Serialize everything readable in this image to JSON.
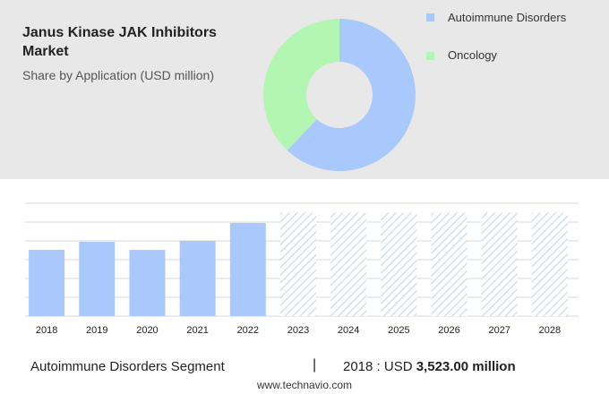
{
  "header": {
    "title": "Janus Kinase JAK Inhibitors Market",
    "subtitle": "Share by Application (USD million)"
  },
  "colors": {
    "autoimmune": "#a9c8fb",
    "oncology": "#b3f5b3",
    "forecast_hatch": "#c8d9f5",
    "grid": "#d9d9d9"
  },
  "chart_data": [
    {
      "type": "pie",
      "variant": "donut",
      "series": [
        {
          "name": "Autoimmune Disorders",
          "share": 0.62
        },
        {
          "name": "Oncology",
          "share": 0.38
        }
      ],
      "legend_position": "right"
    },
    {
      "type": "bar",
      "categories": [
        "2018",
        "2019",
        "2020",
        "2021",
        "2022",
        "2023",
        "2024",
        "2025",
        "2026",
        "2027",
        "2028"
      ],
      "values": [
        3523,
        3950,
        3520,
        4000,
        4950,
        5500,
        5500,
        5500,
        5500,
        5500,
        5500
      ],
      "forecast_from": "2023",
      "grid": true,
      "ylim": [
        0,
        6000
      ]
    }
  ],
  "footer": {
    "segment_label": "Autoimmune Disorders Segment",
    "separator": "|",
    "year_text": "2018 : USD",
    "value_text": "3,523.00 million",
    "source": "www.technavio.com"
  }
}
